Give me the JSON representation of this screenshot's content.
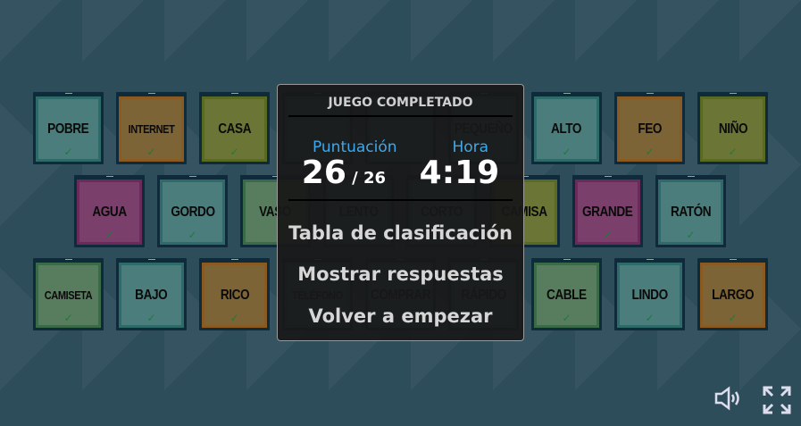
{
  "cards": [
    {
      "word": "POBRE",
      "color": "teal"
    },
    {
      "word": "INTERNET",
      "color": "brown"
    },
    {
      "word": "CASA",
      "color": "olive"
    },
    {
      "word": "",
      "color": "teal"
    },
    {
      "word": "",
      "color": "teal"
    },
    {
      "word": "PEQUEÑO",
      "color": "teal"
    },
    {
      "word": "ALTO",
      "color": "teal"
    },
    {
      "word": "FEO",
      "color": "brown"
    },
    {
      "word": "NIÑO",
      "color": "olive"
    },
    {
      "word": "AGUA",
      "color": "magenta"
    },
    {
      "word": "GORDO",
      "color": "teal"
    },
    {
      "word": "VASO",
      "color": "green"
    },
    {
      "word": "LENTO",
      "color": "teal"
    },
    {
      "word": "CORTO",
      "color": "teal"
    },
    {
      "word": "CAMISA",
      "color": "olive"
    },
    {
      "word": "GRANDE",
      "color": "magenta"
    },
    {
      "word": "RATÓN",
      "color": "teal"
    },
    {
      "word": "CAMISETA",
      "color": "green"
    },
    {
      "word": "BAJO",
      "color": "teal"
    },
    {
      "word": "RICO",
      "color": "brown"
    },
    {
      "word": "TELÉFONO",
      "color": "teal"
    },
    {
      "word": "COMPRAR",
      "color": "teal"
    },
    {
      "word": "RÁPIDO",
      "color": "teal"
    },
    {
      "word": "CABLE",
      "color": "green"
    },
    {
      "word": "LINDO",
      "color": "teal"
    },
    {
      "word": "LARGO",
      "color": "brown"
    }
  ],
  "check_glyph": "✓",
  "overlay": {
    "title": "JUEGO COMPLETADO",
    "score_label": "Puntuación",
    "score": "26",
    "score_total": "/ 26",
    "time_label": "Hora",
    "time": "4:19",
    "menu": [
      "Tabla de clasificación",
      "Mostrar respuestas",
      "Volver a empezar"
    ]
  },
  "controls": {
    "sound_icon": "speaker-icon",
    "fullscreen_icon": "fullscreen-icon"
  }
}
